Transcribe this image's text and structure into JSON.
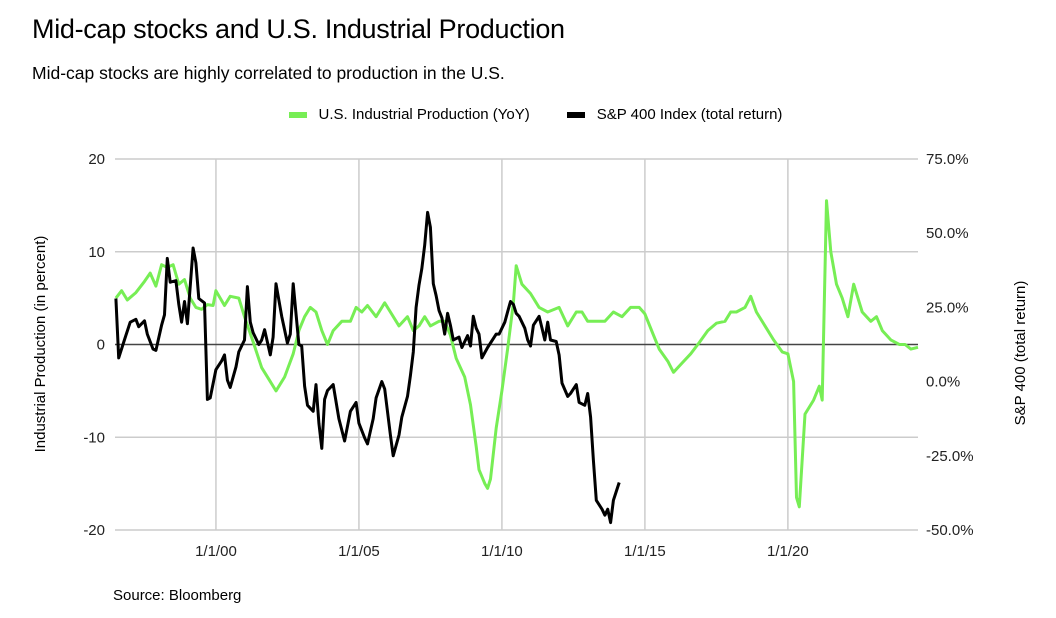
{
  "title": "Mid-cap stocks and U.S. Industrial Production",
  "subtitle": "Mid-cap stocks are highly correlated to production in the U.S.",
  "source": "Source: Bloomberg",
  "chart_data": {
    "type": "line",
    "title": "Mid-cap stocks and U.S. Industrial Production",
    "subtitle": "Mid-cap stocks are highly correlated to production in the U.S.",
    "xlabel": "",
    "ylabel": "Industrial Production (in percent)",
    "y2label": "S&P 400 (total return)",
    "x_range": [
      1996.47,
      2024.55
    ],
    "ylim": [
      -20,
      20
    ],
    "y2lim": [
      -50,
      75
    ],
    "yticks": [
      "20",
      "10",
      "0",
      "-10",
      "-20"
    ],
    "ytick_values": [
      20,
      10,
      0,
      -10,
      -20
    ],
    "y2ticks": [
      "75.0%",
      "50.0%",
      "25.0%",
      "0.0%",
      "-25.0%",
      "-50.0%"
    ],
    "y2tick_values": [
      75,
      50,
      25,
      0,
      -25,
      -50
    ],
    "xticks": [
      "1/1/00",
      "1/1/05",
      "1/1/10",
      "1/1/15",
      "1/1/20"
    ],
    "xtick_values": [
      2000,
      2005,
      2010,
      2015,
      2020
    ],
    "grid": true,
    "legend_position": "top-center",
    "series": [
      {
        "name": "U.S. Industrial Production (YoY)",
        "axis": "left",
        "color": "#77ee55",
        "points": [
          [
            1996.5,
            5.0
          ],
          [
            1996.7,
            5.8
          ],
          [
            1996.9,
            4.8
          ],
          [
            1997.2,
            5.6
          ],
          [
            1997.5,
            6.8
          ],
          [
            1997.7,
            7.7
          ],
          [
            1997.9,
            6.3
          ],
          [
            1998.1,
            8.6
          ],
          [
            1998.3,
            8.3
          ],
          [
            1998.5,
            8.6
          ],
          [
            1998.7,
            6.5
          ],
          [
            1998.9,
            7.0
          ],
          [
            1999.1,
            5.0
          ],
          [
            1999.3,
            4.0
          ],
          [
            1999.5,
            3.8
          ],
          [
            1999.7,
            4.3
          ],
          [
            1999.9,
            4.2
          ],
          [
            2000.0,
            5.8
          ],
          [
            2000.3,
            4.2
          ],
          [
            2000.5,
            5.2
          ],
          [
            2000.8,
            5.0
          ],
          [
            2001.0,
            3.0
          ],
          [
            2001.3,
            0.3
          ],
          [
            2001.6,
            -2.5
          ],
          [
            2001.9,
            -4.0
          ],
          [
            2002.1,
            -5.0
          ],
          [
            2002.4,
            -3.5
          ],
          [
            2002.7,
            -1.0
          ],
          [
            2002.9,
            1.5
          ],
          [
            2003.1,
            3.0
          ],
          [
            2003.3,
            4.0
          ],
          [
            2003.5,
            3.5
          ],
          [
            2003.7,
            1.5
          ],
          [
            2003.9,
            0.0
          ],
          [
            2004.1,
            1.5
          ],
          [
            2004.4,
            2.5
          ],
          [
            2004.7,
            2.5
          ],
          [
            2004.9,
            4.0
          ],
          [
            2005.1,
            3.5
          ],
          [
            2005.3,
            4.2
          ],
          [
            2005.6,
            3.0
          ],
          [
            2005.9,
            4.5
          ],
          [
            2006.1,
            3.5
          ],
          [
            2006.4,
            2.0
          ],
          [
            2006.7,
            3.0
          ],
          [
            2006.9,
            1.5
          ],
          [
            2007.1,
            2.0
          ],
          [
            2007.3,
            3.0
          ],
          [
            2007.5,
            2.0
          ],
          [
            2007.8,
            2.5
          ],
          [
            2008.0,
            2.5
          ],
          [
            2008.2,
            1.0
          ],
          [
            2008.4,
            -1.5
          ],
          [
            2008.7,
            -3.5
          ],
          [
            2008.9,
            -6.5
          ],
          [
            2009.1,
            -11.0
          ],
          [
            2009.2,
            -13.5
          ],
          [
            2009.4,
            -15.0
          ],
          [
            2009.5,
            -15.5
          ],
          [
            2009.6,
            -14.5
          ],
          [
            2009.8,
            -9.0
          ],
          [
            2010.0,
            -5.0
          ],
          [
            2010.2,
            -0.5
          ],
          [
            2010.4,
            4.5
          ],
          [
            2010.5,
            8.5
          ],
          [
            2010.7,
            6.5
          ],
          [
            2011.0,
            5.5
          ],
          [
            2011.3,
            4.0
          ],
          [
            2011.6,
            3.5
          ],
          [
            2012.0,
            4.0
          ],
          [
            2012.3,
            2.0
          ],
          [
            2012.6,
            3.5
          ],
          [
            2012.8,
            3.5
          ],
          [
            2013.0,
            2.5
          ],
          [
            2013.3,
            2.5
          ],
          [
            2013.6,
            2.5
          ],
          [
            2013.9,
            3.5
          ],
          [
            2014.2,
            3.0
          ],
          [
            2014.5,
            4.0
          ],
          [
            2014.8,
            4.0
          ],
          [
            2015.0,
            3.3
          ],
          [
            2015.3,
            1.0
          ],
          [
            2015.5,
            -0.5
          ],
          [
            2015.8,
            -1.8
          ],
          [
            2016.0,
            -3.0
          ],
          [
            2016.3,
            -2.0
          ],
          [
            2016.6,
            -1.0
          ],
          [
            2016.9,
            0.2
          ],
          [
            2017.2,
            1.5
          ],
          [
            2017.5,
            2.3
          ],
          [
            2017.8,
            2.5
          ],
          [
            2018.0,
            3.5
          ],
          [
            2018.2,
            3.5
          ],
          [
            2018.5,
            4.0
          ],
          [
            2018.7,
            5.2
          ],
          [
            2018.9,
            3.5
          ],
          [
            2019.2,
            2.0
          ],
          [
            2019.5,
            0.5
          ],
          [
            2019.8,
            -0.8
          ],
          [
            2020.0,
            -1.0
          ],
          [
            2020.2,
            -4.0
          ],
          [
            2020.3,
            -16.5
          ],
          [
            2020.4,
            -17.5
          ],
          [
            2020.6,
            -7.5
          ],
          [
            2020.9,
            -6.0
          ],
          [
            2021.1,
            -4.5
          ],
          [
            2021.2,
            -6.0
          ],
          [
            2021.35,
            15.5
          ],
          [
            2021.5,
            10.0
          ],
          [
            2021.7,
            6.5
          ],
          [
            2021.9,
            5.0
          ],
          [
            2022.1,
            3.0
          ],
          [
            2022.3,
            6.5
          ],
          [
            2022.6,
            3.5
          ],
          [
            2022.9,
            2.5
          ],
          [
            2023.1,
            3.0
          ],
          [
            2023.3,
            1.5
          ],
          [
            2023.6,
            0.5
          ],
          [
            2023.9,
            0.0
          ],
          [
            2024.1,
            0.0
          ],
          [
            2024.3,
            -0.5
          ],
          [
            2024.55,
            -0.3
          ]
        ]
      },
      {
        "name": "S&P 400 Index (total return)",
        "axis": "right",
        "color": "#000000",
        "points": [
          [
            1996.5,
            28.0
          ],
          [
            1996.6,
            8.0
          ],
          [
            1996.8,
            14.0
          ],
          [
            1997.0,
            20.0
          ],
          [
            1997.2,
            21.0
          ],
          [
            1997.3,
            18.5
          ],
          [
            1997.5,
            20.5
          ],
          [
            1997.6,
            16.0
          ],
          [
            1997.8,
            11.0
          ],
          [
            1997.9,
            10.5
          ],
          [
            1998.1,
            19.0
          ],
          [
            1998.2,
            22.5
          ],
          [
            1998.3,
            41.5
          ],
          [
            1998.4,
            33.5
          ],
          [
            1998.6,
            34.0
          ],
          [
            1998.7,
            26.0
          ],
          [
            1998.8,
            20.0
          ],
          [
            1998.9,
            27.0
          ],
          [
            1999.0,
            19.5
          ],
          [
            1999.2,
            45.0
          ],
          [
            1999.3,
            40.0
          ],
          [
            1999.4,
            28.0
          ],
          [
            1999.6,
            26.5
          ],
          [
            1999.7,
            -6.0
          ],
          [
            1999.8,
            -5.5
          ],
          [
            2000.0,
            4.0
          ],
          [
            2000.2,
            7.0
          ],
          [
            2000.3,
            9.0
          ],
          [
            2000.4,
            0.5
          ],
          [
            2000.5,
            -2.0
          ],
          [
            2000.7,
            5.0
          ],
          [
            2000.8,
            10.0
          ],
          [
            2001.0,
            14.0
          ],
          [
            2001.1,
            32.0
          ],
          [
            2001.2,
            20.0
          ],
          [
            2001.3,
            16.5
          ],
          [
            2001.5,
            12.5
          ],
          [
            2001.6,
            14.0
          ],
          [
            2001.7,
            17.5
          ],
          [
            2001.9,
            9.0
          ],
          [
            2002.0,
            15.0
          ],
          [
            2002.1,
            33.0
          ],
          [
            2002.3,
            22.0
          ],
          [
            2002.5,
            13.0
          ],
          [
            2002.6,
            16.0
          ],
          [
            2002.7,
            33.0
          ],
          [
            2002.9,
            12.5
          ],
          [
            2003.0,
            12.0
          ],
          [
            2003.1,
            -1.5
          ],
          [
            2003.2,
            -8.0
          ],
          [
            2003.4,
            -10.0
          ],
          [
            2003.5,
            -1.0
          ],
          [
            2003.6,
            -14.0
          ],
          [
            2003.7,
            -22.5
          ],
          [
            2003.8,
            -6.0
          ],
          [
            2003.9,
            -3.0
          ],
          [
            2004.1,
            -1.0
          ],
          [
            2004.3,
            -12.5
          ],
          [
            2004.5,
            -20.0
          ],
          [
            2004.7,
            -10.0
          ],
          [
            2004.9,
            -7.0
          ],
          [
            2005.0,
            -14.0
          ],
          [
            2005.2,
            -19.0
          ],
          [
            2005.3,
            -21.0
          ],
          [
            2005.5,
            -12.5
          ],
          [
            2005.6,
            -5.5
          ],
          [
            2005.8,
            0.0
          ],
          [
            2005.9,
            -2.5
          ],
          [
            2006.1,
            -18.0
          ],
          [
            2006.2,
            -25.0
          ],
          [
            2006.4,
            -18.0
          ],
          [
            2006.5,
            -12.0
          ],
          [
            2006.7,
            -5.0
          ],
          [
            2006.8,
            2.0
          ],
          [
            2006.9,
            10.0
          ],
          [
            2007.0,
            25.0
          ],
          [
            2007.1,
            32.5
          ],
          [
            2007.2,
            38.0
          ],
          [
            2007.3,
            46.0
          ],
          [
            2007.4,
            57.0
          ],
          [
            2007.5,
            52.0
          ],
          [
            2007.6,
            33.0
          ],
          [
            2007.7,
            29.0
          ],
          [
            2007.8,
            24.0
          ],
          [
            2007.9,
            21.5
          ],
          [
            2008.0,
            16.0
          ],
          [
            2008.1,
            23.0
          ],
          [
            2008.2,
            19.0
          ],
          [
            2008.3,
            14.0
          ],
          [
            2008.5,
            15.0
          ],
          [
            2008.6,
            11.5
          ],
          [
            2008.8,
            15.5
          ],
          [
            2008.9,
            12.0
          ],
          [
            2009.0,
            22.0
          ],
          [
            2009.1,
            18.0
          ],
          [
            2009.2,
            16.0
          ],
          [
            2009.3,
            8.0
          ],
          [
            2009.5,
            11.5
          ],
          [
            2009.6,
            13.0
          ],
          [
            2009.8,
            16.0
          ],
          [
            2009.9,
            16.0
          ],
          [
            2010.1,
            20.0
          ],
          [
            2010.2,
            23.5
          ],
          [
            2010.3,
            27.0
          ],
          [
            2010.4,
            26.0
          ],
          [
            2010.5,
            23.0
          ],
          [
            2010.6,
            22.0
          ],
          [
            2010.8,
            18.0
          ],
          [
            2010.9,
            14.0
          ],
          [
            2011.0,
            12.0
          ],
          [
            2011.1,
            19.0
          ],
          [
            2011.3,
            22.0
          ],
          [
            2011.4,
            18.0
          ],
          [
            2011.5,
            14.0
          ],
          [
            2011.6,
            20.0
          ],
          [
            2011.7,
            14.0
          ],
          [
            2011.9,
            13.5
          ],
          [
            2012.0,
            9.0
          ],
          [
            2012.1,
            -0.5
          ],
          [
            2012.3,
            -5.0
          ],
          [
            2012.4,
            -4.0
          ],
          [
            2012.6,
            -1.0
          ],
          [
            2012.7,
            -7.0
          ],
          [
            2012.9,
            -8.0
          ],
          [
            2013.0,
            -4.0
          ],
          [
            2013.1,
            -12.0
          ],
          [
            2013.2,
            -26.5
          ],
          [
            2013.3,
            -40.0
          ],
          [
            2013.5,
            -43.0
          ],
          [
            2013.6,
            -45.0
          ],
          [
            2013.7,
            -43.0
          ],
          [
            2013.8,
            -47.5
          ],
          [
            2013.9,
            -40.0
          ],
          [
            2014.0,
            -37.0
          ],
          [
            2014.1,
            -34.0
          ]
        ]
      }
    ]
  },
  "legend": [
    {
      "label": "U.S. Industrial Production (YoY)",
      "color": "#77ee55"
    },
    {
      "label": "S&P 400 Index (total return)",
      "color": "#000000"
    }
  ]
}
